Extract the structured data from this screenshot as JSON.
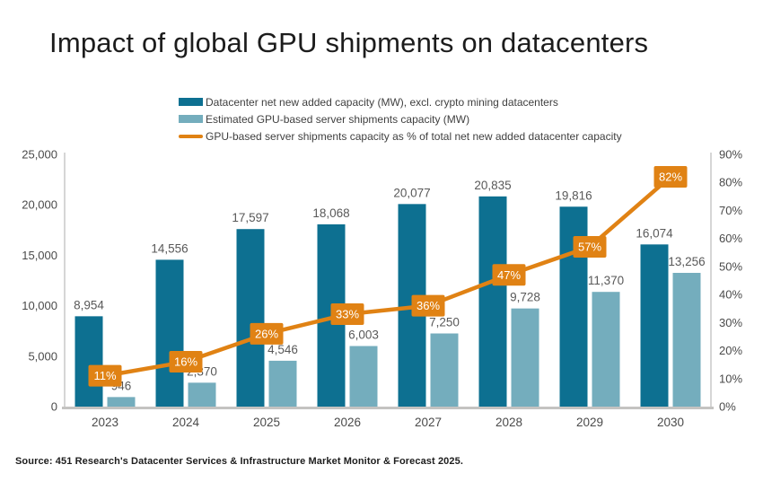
{
  "title": "Impact of global GPU shipments on datacenters",
  "source": "Source: 451 Research's Datacenter Services & Infrastructure Market Monitor & Forecast 2025.",
  "colors": {
    "datacenter_bar": "#0d7091",
    "gpu_bar": "#74adbd",
    "line": "#e08214",
    "pct_box_text": "#ffffff",
    "axis_line": "#c9c9c9",
    "baseline": "#c4c3c1",
    "value_label_text": "#595959",
    "axis_tick_text": "#4a4a4a"
  },
  "chart_data": {
    "type": "bar",
    "subtype": "grouped bars with secondary-axis line",
    "categories": [
      "2023",
      "2024",
      "2025",
      "2026",
      "2027",
      "2028",
      "2029",
      "2030"
    ],
    "series": [
      {
        "name": "Datacenter net new added capacity (MW), excl. crypto mining datacenters",
        "type": "bar",
        "axis": "left",
        "values": [
          8954,
          14556,
          17597,
          18068,
          20077,
          20835,
          19816,
          16074
        ],
        "labels": [
          "8,954",
          "14,556",
          "17,597",
          "18,068",
          "20,077",
          "20,835",
          "19,816",
          "16,074"
        ]
      },
      {
        "name": "Estimated GPU-based server shipments capacity (MW)",
        "type": "bar",
        "axis": "left",
        "values": [
          946,
          2370,
          4546,
          6003,
          7250,
          9728,
          11370,
          13256
        ],
        "labels": [
          "946",
          "2,370",
          "4,546",
          "6,003",
          "7,250",
          "9,728",
          "11,370",
          "13,256"
        ]
      },
      {
        "name": "GPU-based server shipments capacity as % of total net new added datacenter capacity",
        "type": "line",
        "axis": "right",
        "unit": "%",
        "values": [
          11,
          16,
          26,
          33,
          36,
          47,
          57,
          82
        ],
        "labels": [
          "11%",
          "16%",
          "26%",
          "33%",
          "36%",
          "47%",
          "57%",
          "82%"
        ]
      }
    ],
    "left_axis": {
      "min": 0,
      "max": 25000,
      "step": 5000,
      "ticks": [
        "0",
        "5,000",
        "10,000",
        "15,000",
        "20,000",
        "25,000"
      ]
    },
    "right_axis": {
      "min": 0,
      "max": 90,
      "step": 10,
      "ticks": [
        "0%",
        "10%",
        "20%",
        "30%",
        "40%",
        "50%",
        "60%",
        "70%",
        "80%",
        "90%"
      ]
    },
    "grid": false,
    "legend_position": "top",
    "value_labels": true
  }
}
